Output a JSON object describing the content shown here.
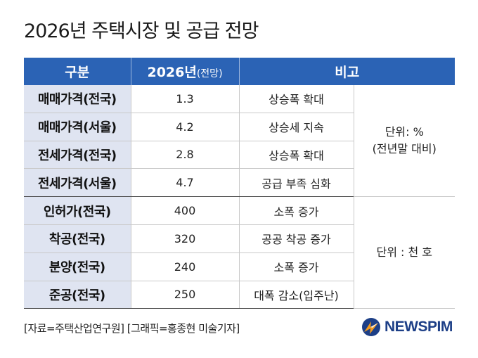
{
  "title": "2026년 주택시장 및 공급 전망",
  "table": {
    "headers": {
      "category": "구분",
      "value_main": "2026년",
      "value_sub": "(전망)",
      "note": "비고"
    },
    "rows": [
      {
        "category": "매매가격(전국)",
        "value": "1.3",
        "note": "상승폭 확대"
      },
      {
        "category": "매매가격(서울)",
        "value": "4.2",
        "note": "상승세 지속"
      },
      {
        "category": "전세가격(전국)",
        "value": "2.8",
        "note": "상승폭 확대"
      },
      {
        "category": "전세가격(서울)",
        "value": "4.7",
        "note": "공급 부족 심화"
      },
      {
        "category": "인허가(전국)",
        "value": "400",
        "note": "소폭 증가"
      },
      {
        "category": "착공(전국)",
        "value": "320",
        "note": "공공 착공 증가"
      },
      {
        "category": "분양(전국)",
        "value": "240",
        "note": "소폭 증가"
      },
      {
        "category": "준공(전국)",
        "value": "250",
        "note": "대폭 감소(입주난)"
      }
    ],
    "unit_groups": [
      {
        "line1": "단위: %",
        "line2": "(전년말 대비)"
      },
      {
        "line1": "단위 : 천 호"
      }
    ]
  },
  "source": "[자료=주택산업연구원] [그래픽=홍종현 미술기자]",
  "logo": {
    "text": "NEWSPIM",
    "icon": "newspim-logo-icon"
  },
  "colors": {
    "header_bg": "#2b63b5",
    "category_bg": "#dfe4f1",
    "logo_text": "#1d3f87"
  }
}
